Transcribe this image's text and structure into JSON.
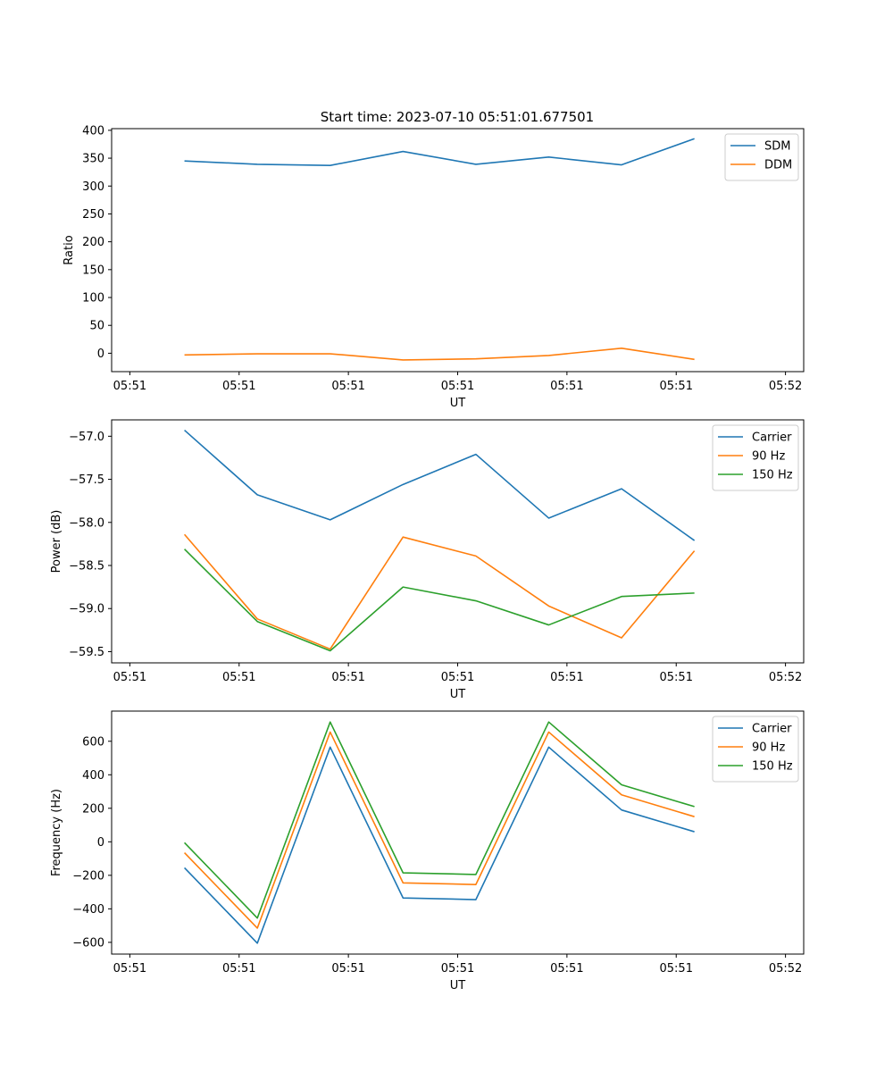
{
  "figure": {
    "title": "Start time: 2023-07-10 05:51:01.677501",
    "colors": {
      "blue": "#1f77b4",
      "orange": "#ff7f0e",
      "green": "#2ca02c"
    }
  },
  "chart_data": [
    {
      "type": "line",
      "title": "Start time: 2023-07-10 05:51:01.677501",
      "xlabel": "UT",
      "ylabel": "Ratio",
      "x": [
        1,
        2,
        3,
        4,
        5,
        6,
        7,
        8
      ],
      "xlim": [
        0,
        9.5
      ],
      "x_ticks": [
        0.25,
        1.75,
        3.25,
        4.75,
        6.25,
        7.75,
        9.25
      ],
      "x_tick_labels": [
        "05:51",
        "05:51",
        "05:51",
        "05:51",
        "05:51",
        "05:51",
        "05:52"
      ],
      "ylim": [
        -33,
        403
      ],
      "y_ticks": [
        0,
        50,
        100,
        150,
        200,
        250,
        300,
        350,
        400
      ],
      "y_tick_labels": [
        "0",
        "50",
        "100",
        "150",
        "200",
        "250",
        "300",
        "350",
        "400"
      ],
      "legend": "top-right",
      "series": [
        {
          "name": "SDM",
          "color": "#1f77b4",
          "values": [
            345,
            339,
            337,
            362,
            339,
            352,
            338,
            385
          ]
        },
        {
          "name": "DDM",
          "color": "#ff7f0e",
          "values": [
            -3,
            -1,
            -1,
            -12,
            -10,
            -4,
            9,
            -11
          ]
        }
      ]
    },
    {
      "type": "line",
      "title": "",
      "xlabel": "UT",
      "ylabel": "Power (dB)",
      "x": [
        1,
        2,
        3,
        4,
        5,
        6,
        7,
        8
      ],
      "xlim": [
        0,
        9.5
      ],
      "x_ticks": [
        0.25,
        1.75,
        3.25,
        4.75,
        6.25,
        7.75,
        9.25
      ],
      "x_tick_labels": [
        "05:51",
        "05:51",
        "05:51",
        "05:51",
        "05:51",
        "05:51",
        "05:52"
      ],
      "ylim": [
        -59.63,
        -56.81
      ],
      "y_ticks": [
        -57.0,
        -57.5,
        -58.0,
        -58.5,
        -59.0,
        -59.5
      ],
      "y_tick_labels": [
        "−57.0",
        "−57.5",
        "−58.0",
        "−58.5",
        "−59.0",
        "−59.5"
      ],
      "legend": "top-right",
      "series": [
        {
          "name": "Carrier",
          "color": "#1f77b4",
          "values": [
            -56.93,
            -57.68,
            -57.97,
            -57.56,
            -57.21,
            -57.95,
            -57.61,
            -58.21
          ]
        },
        {
          "name": "90 Hz",
          "color": "#ff7f0e",
          "values": [
            -58.14,
            -59.12,
            -59.47,
            -58.17,
            -58.39,
            -58.97,
            -59.34,
            -58.33
          ]
        },
        {
          "name": "150 Hz",
          "color": "#2ca02c",
          "values": [
            -58.31,
            -59.15,
            -59.49,
            -58.75,
            -58.91,
            -59.19,
            -58.86,
            -58.82
          ]
        }
      ]
    },
    {
      "type": "line",
      "title": "",
      "xlabel": "UT",
      "ylabel": "Frequency (Hz)",
      "x": [
        1,
        2,
        3,
        4,
        5,
        6,
        7,
        8
      ],
      "xlim": [
        0,
        9.5
      ],
      "x_ticks": [
        0.25,
        1.75,
        3.25,
        4.75,
        6.25,
        7.75,
        9.25
      ],
      "x_tick_labels": [
        "05:51",
        "05:51",
        "05:51",
        "05:51",
        "05:51",
        "05:51",
        "05:52"
      ],
      "ylim": [
        -670,
        780
      ],
      "y_ticks": [
        -600,
        -400,
        -200,
        0,
        200,
        400,
        600
      ],
      "y_tick_labels": [
        "−600",
        "−400",
        "−200",
        "0",
        "200",
        "400",
        "600"
      ],
      "legend": "top-right",
      "series": [
        {
          "name": "Carrier",
          "color": "#1f77b4",
          "values": [
            -155,
            -605,
            565,
            -335,
            -345,
            565,
            190,
            60
          ]
        },
        {
          "name": "90 Hz",
          "color": "#ff7f0e",
          "values": [
            -65,
            -515,
            655,
            -245,
            -255,
            655,
            280,
            150
          ]
        },
        {
          "name": "150 Hz",
          "color": "#2ca02c",
          "values": [
            -5,
            -455,
            715,
            -185,
            -195,
            715,
            340,
            210
          ]
        }
      ]
    }
  ]
}
